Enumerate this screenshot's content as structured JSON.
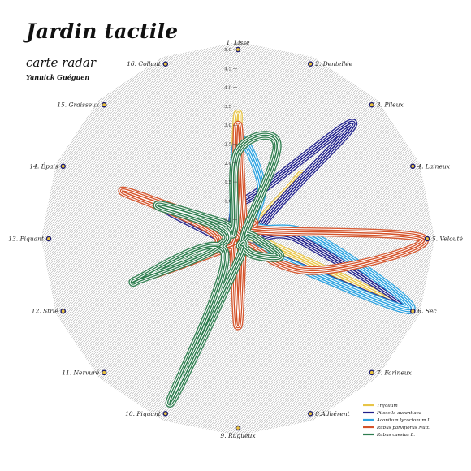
{
  "header": {
    "title": "Jardin tactile",
    "subtitle": "carte radar",
    "author": "Yannick Guéguen"
  },
  "colors": {
    "disc_fill": "#d8d8d8",
    "marker_fill": "#e9c33f",
    "marker_stroke": "#1c1c6e"
  },
  "chart_data": {
    "type": "radar",
    "title": "Jardin tactile",
    "subtitle": "carte radar",
    "axes": [
      "1. Lisse",
      "2. Dentellée",
      "3. Pileux",
      "4. Laineux",
      "5. Velouté",
      "6. Sec",
      "7. Farineux",
      "8.Adhérent",
      "9. Rugueux",
      "10. Piquant",
      "11. Nervuré",
      "12. Strié",
      "13. Piquant",
      "14. Épais",
      "15. Graisseux",
      "16. Collant"
    ],
    "rlim": [
      0,
      5
    ],
    "ticks": [
      "0.5",
      "1.0",
      "1.5",
      "2.0",
      "2.5",
      "3.0",
      "3.5",
      "4.0",
      "4.5",
      "5.0"
    ],
    "grid": "hatched",
    "legend_position": "bottom-right",
    "series": [
      {
        "name": "Trifolium",
        "color": "#e8c547",
        "values": [
          3.3,
          0.4,
          2.4,
          0.3,
          0.5,
          4.7,
          0.2,
          0.3,
          0.5,
          0.3,
          0.1,
          0.3,
          0.4,
          0.2,
          0.2,
          0.3
        ]
      },
      {
        "name": "Pilosella aurantiaca",
        "color": "#20208a",
        "values": [
          1.0,
          1.3,
          4.3,
          0.6,
          1.6,
          4.9,
          0.2,
          0.3,
          0.6,
          0.3,
          0.5,
          0.3,
          0.4,
          2.0,
          0.3,
          0.4
        ]
      },
      {
        "name": "Aconitum lycoctonum L.",
        "color": "#2ca3e0",
        "values": [
          2.6,
          1.6,
          0.6,
          0.7,
          2.1,
          4.9,
          0.2,
          0.2,
          0.2,
          0.2,
          0.2,
          0.3,
          0.2,
          0.1,
          0.2,
          0.3
        ]
      },
      {
        "name": "Rubus parviflorus Nutt.",
        "color": "#d4532a",
        "values": [
          3.0,
          0.4,
          0.6,
          0.6,
          4.9,
          2.2,
          0.2,
          0.3,
          2.3,
          0.3,
          0.3,
          2.4,
          0.5,
          3.3,
          0.4,
          0.2
        ]
      },
      {
        "name": "Rubus caesius L.",
        "color": "#2e7d4f",
        "values": [
          2.3,
          2.7,
          0.3,
          0.3,
          0.5,
          1.2,
          0.6,
          0.2,
          0.6,
          4.7,
          0.5,
          3.0,
          0.3,
          2.3,
          0.6,
          0.3
        ]
      }
    ]
  }
}
